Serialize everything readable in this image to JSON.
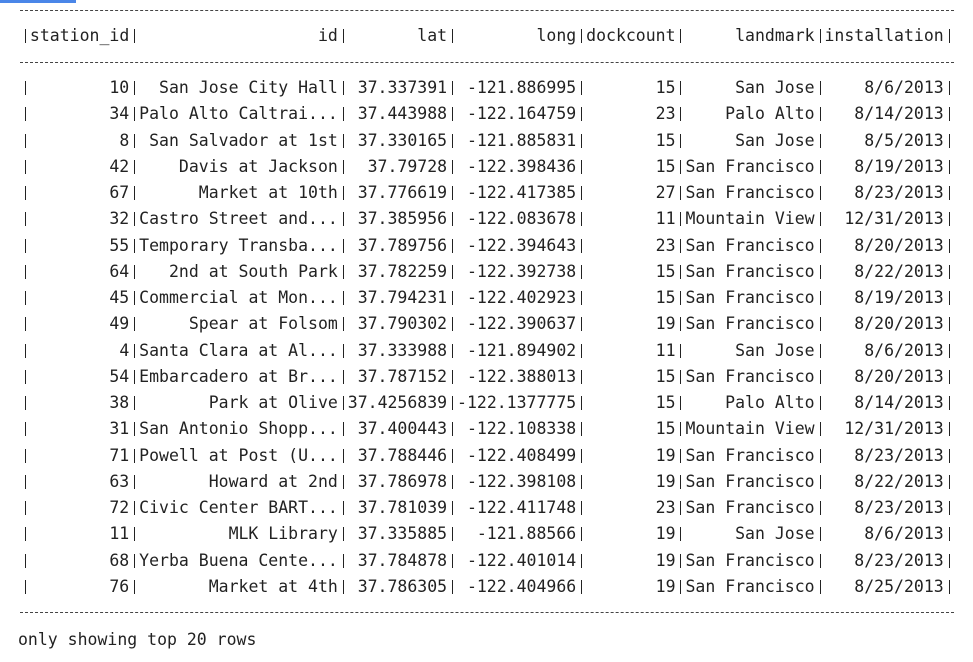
{
  "table": {
    "header": [
      "station_id",
      "id",
      "lat",
      "long",
      "dockcount",
      "landmark",
      "installation"
    ],
    "rows": [
      [
        "10",
        "San Jose City Hall",
        "37.337391",
        "-121.886995",
        "15",
        "San Jose",
        "8/6/2013"
      ],
      [
        "34",
        "Palo Alto Caltrai...",
        "37.443988",
        "-122.164759",
        "23",
        "Palo Alto",
        "8/14/2013"
      ],
      [
        "8",
        "San Salvador at 1st",
        "37.330165",
        "-121.885831",
        "15",
        "San Jose",
        "8/5/2013"
      ],
      [
        "42",
        "Davis at Jackson",
        "37.79728",
        "-122.398436",
        "15",
        "San Francisco",
        "8/19/2013"
      ],
      [
        "67",
        "Market at 10th",
        "37.776619",
        "-122.417385",
        "27",
        "San Francisco",
        "8/23/2013"
      ],
      [
        "32",
        "Castro Street and...",
        "37.385956",
        "-122.083678",
        "11",
        "Mountain View",
        "12/31/2013"
      ],
      [
        "55",
        "Temporary Transba...",
        "37.789756",
        "-122.394643",
        "23",
        "San Francisco",
        "8/20/2013"
      ],
      [
        "64",
        "2nd at South Park",
        "37.782259",
        "-122.392738",
        "15",
        "San Francisco",
        "8/22/2013"
      ],
      [
        "45",
        "Commercial at Mon...",
        "37.794231",
        "-122.402923",
        "15",
        "San Francisco",
        "8/19/2013"
      ],
      [
        "49",
        "Spear at Folsom",
        "37.790302",
        "-122.390637",
        "19",
        "San Francisco",
        "8/20/2013"
      ],
      [
        "4",
        "Santa Clara at Al...",
        "37.333988",
        "-121.894902",
        "11",
        "San Jose",
        "8/6/2013"
      ],
      [
        "54",
        "Embarcadero at Br...",
        "37.787152",
        "-122.388013",
        "15",
        "San Francisco",
        "8/20/2013"
      ],
      [
        "38",
        "Park at Olive",
        "37.4256839",
        "-122.1377775",
        "15",
        "Palo Alto",
        "8/14/2013"
      ],
      [
        "31",
        "San Antonio Shopp...",
        "37.400443",
        "-122.108338",
        "15",
        "Mountain View",
        "12/31/2013"
      ],
      [
        "71",
        "Powell at Post (U...",
        "37.788446",
        "-122.408499",
        "19",
        "San Francisco",
        "8/23/2013"
      ],
      [
        "63",
        "Howard at 2nd",
        "37.786978",
        "-122.398108",
        "19",
        "San Francisco",
        "8/22/2013"
      ],
      [
        "72",
        "Civic Center BART...",
        "37.781039",
        "-122.411748",
        "23",
        "San Francisco",
        "8/23/2013"
      ],
      [
        "11",
        "MLK Library",
        "37.335885",
        "-121.88566",
        "19",
        "San Jose",
        "8/6/2013"
      ],
      [
        "68",
        "Yerba Buena Cente...",
        "37.784878",
        "-122.401014",
        "19",
        "San Francisco",
        "8/23/2013"
      ],
      [
        "76",
        "Market at 4th",
        "37.786305",
        "-122.404966",
        "19",
        "San Francisco",
        "8/25/2013"
      ]
    ]
  },
  "footer": "only showing top 20 rows"
}
